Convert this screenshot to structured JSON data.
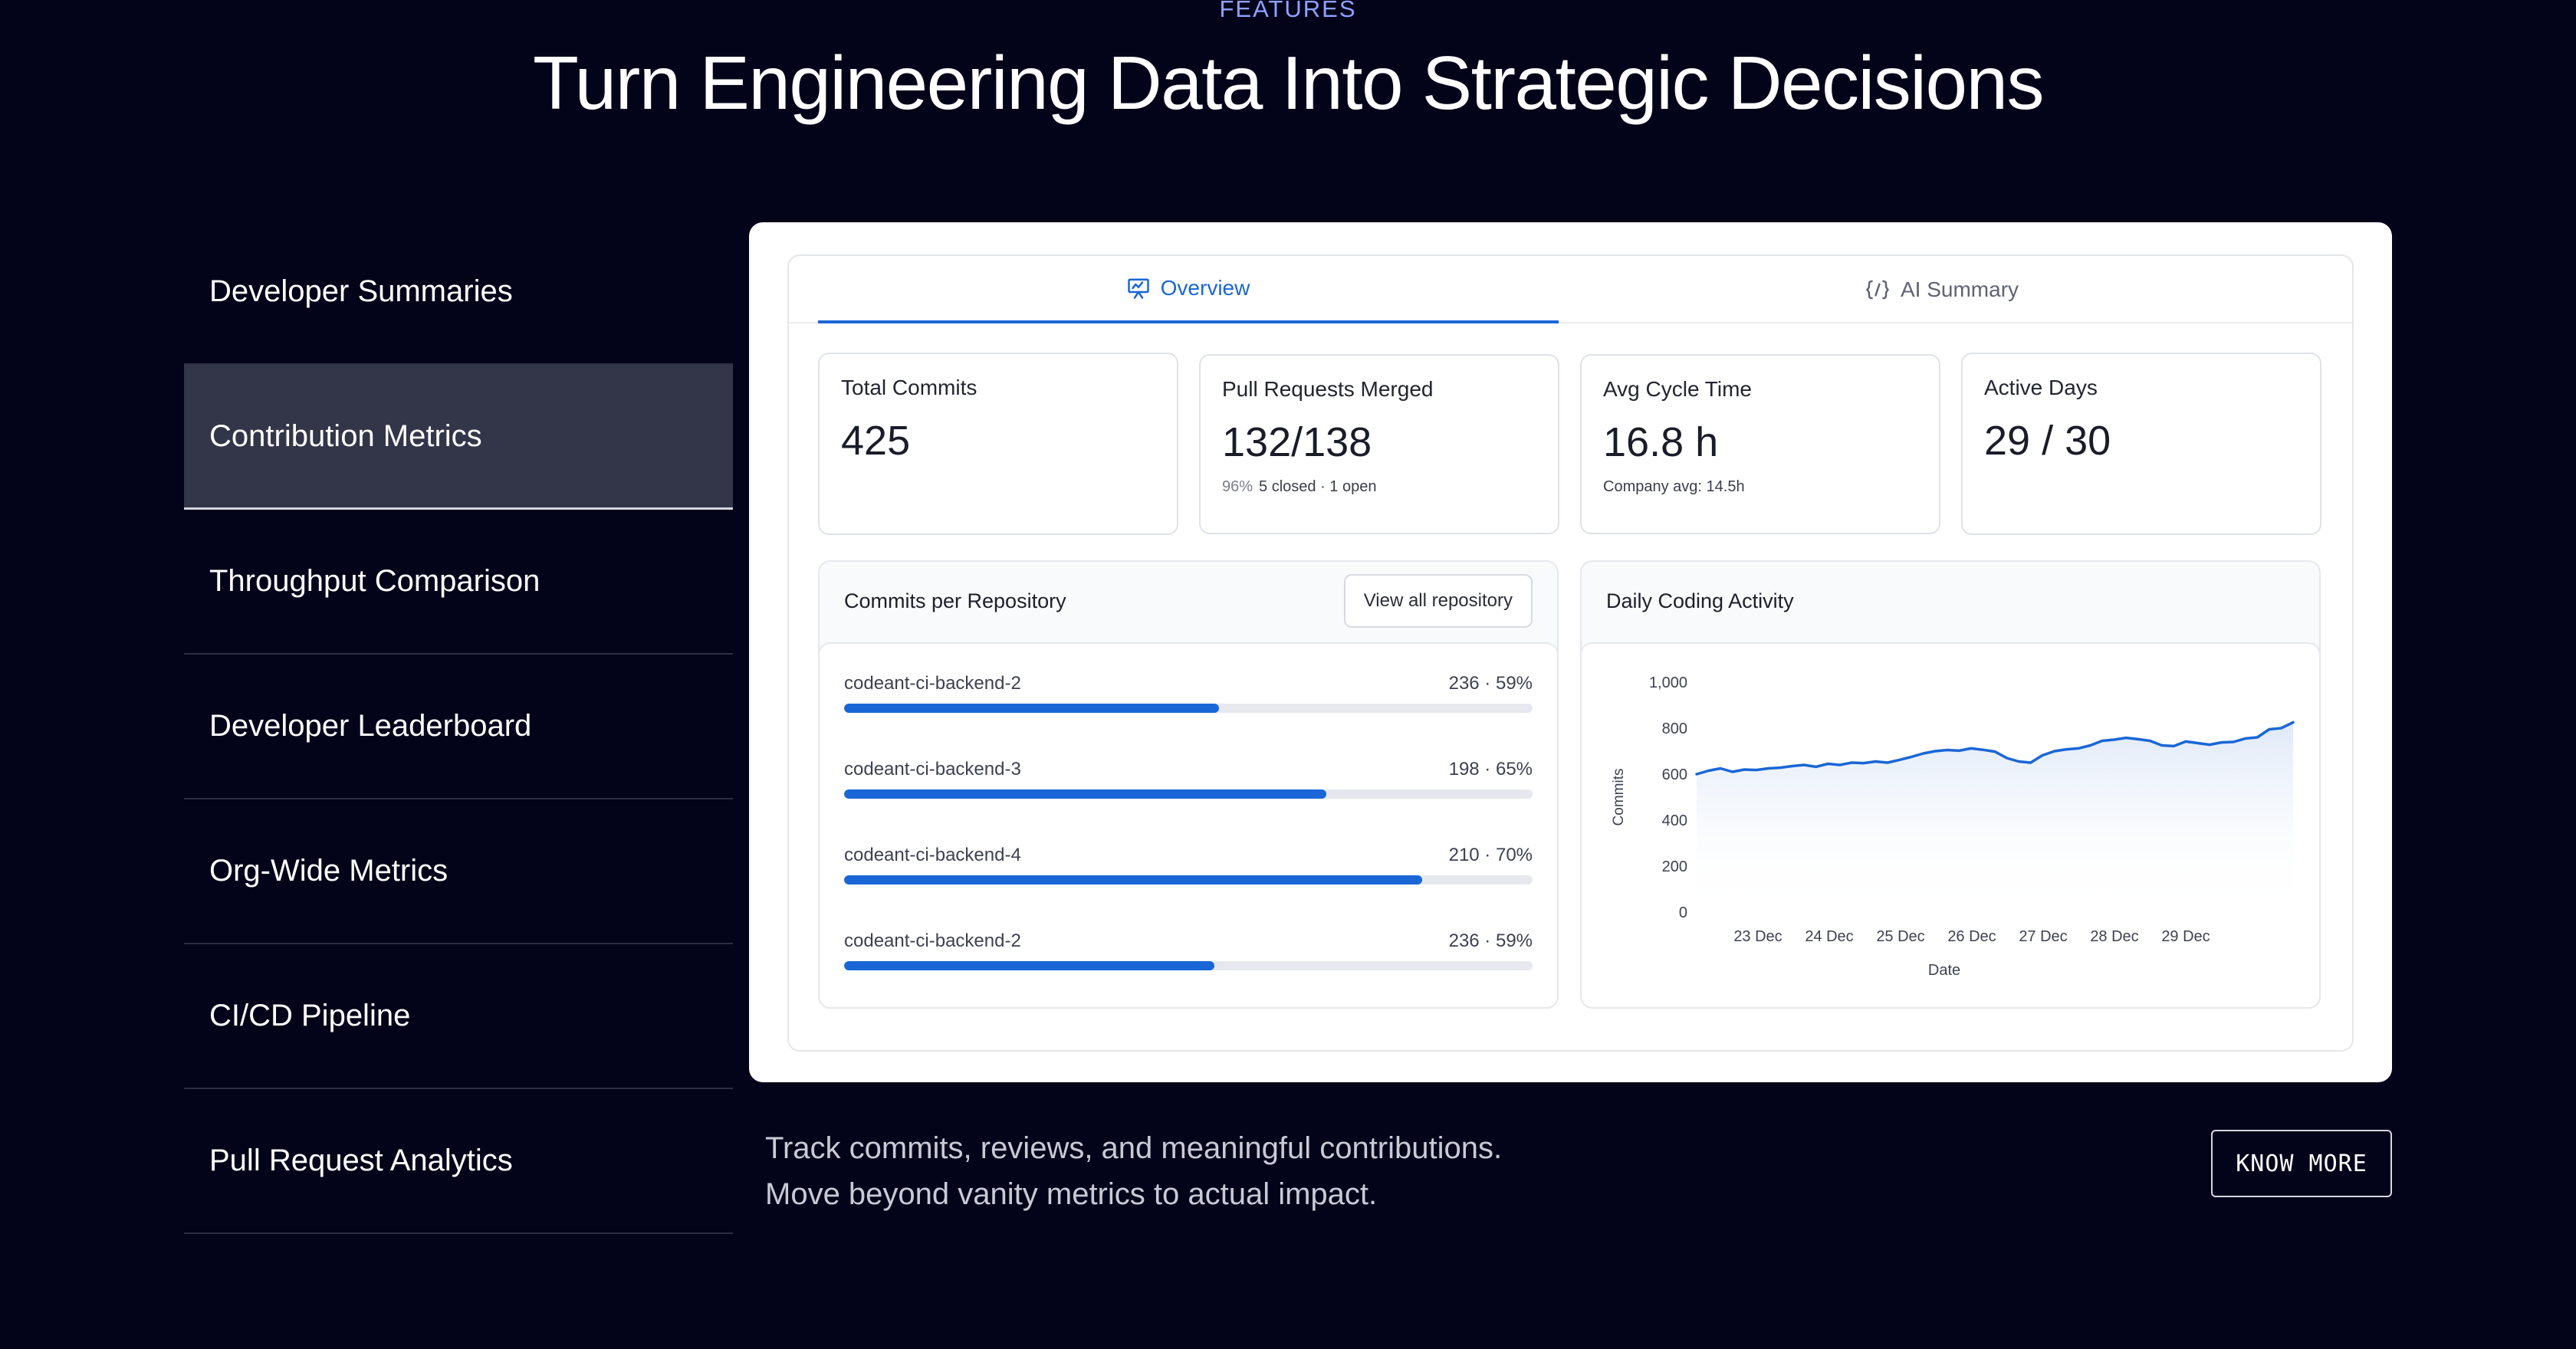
{
  "header": {
    "eyebrow": "FEATURES",
    "title": "Turn Engineering Data Into Strategic Decisions"
  },
  "features": [
    {
      "label": "Developer Summaries",
      "active": false
    },
    {
      "label": "Contribution Metrics",
      "active": true
    },
    {
      "label": "Throughput Comparison",
      "active": false
    },
    {
      "label": "Developer Leaderboard",
      "active": false
    },
    {
      "label": "Org-Wide Metrics",
      "active": false
    },
    {
      "label": "CI/CD Pipeline",
      "active": false
    },
    {
      "label": "Pull Request Analytics",
      "active": false
    }
  ],
  "dashboard": {
    "tabs": [
      {
        "label": "Overview",
        "icon": "presentation-icon",
        "active": true
      },
      {
        "label": "AI Summary",
        "icon": "code-brackets-icon",
        "active": false
      }
    ],
    "stats": [
      {
        "label": "Total Commits",
        "value": "425",
        "sub_muted": "",
        "sub": ""
      },
      {
        "label": "Pull Requests Merged",
        "value": "132/138",
        "sub_muted": "96%",
        "sub": "5 closed · 1 open"
      },
      {
        "label": "Avg Cycle Time",
        "value": "16.8 h",
        "sub_muted": "",
        "sub": "Company avg: 14.5h"
      },
      {
        "label": "Active Days",
        "value": "29 / 30",
        "sub_muted": "",
        "sub": ""
      }
    ],
    "repos_panel": {
      "title": "Commits per Repository",
      "view_all_label": "View all repository",
      "repos": [
        {
          "name": "codeant-ci-backend-2",
          "value_label": "236 · 59%",
          "fill": 0.545
        },
        {
          "name": "codeant-ci-backend-3",
          "value_label": "198 · 65%",
          "fill": 0.7
        },
        {
          "name": "codeant-ci-backend-4",
          "value_label": "210 · 70%",
          "fill": 0.84
        },
        {
          "name": "codeant-ci-backend-2",
          "value_label": "236 · 59%",
          "fill": 0.538
        }
      ]
    },
    "activity_panel": {
      "title": "Daily Coding Activity"
    }
  },
  "chart_data": {
    "type": "area",
    "title": "Daily Coding Activity",
    "xlabel": "Date",
    "ylabel": "Commits",
    "ylim": [
      0,
      1000
    ],
    "yticks": [
      "1,000",
      "800",
      "600",
      "400",
      "200",
      "0"
    ],
    "ytick_values": [
      1000,
      800,
      600,
      400,
      200,
      0
    ],
    "xticks": [
      "23 Dec",
      "24 Dec",
      "25 Dec",
      "26 Dec",
      "27 Dec",
      "28 Dec",
      "29 Dec"
    ],
    "series": [
      {
        "values": [
          600,
          615,
          625,
          610,
          620,
          618,
          625,
          628,
          635,
          640,
          632,
          645,
          640,
          650,
          648,
          655,
          650,
          662,
          675,
          690,
          700,
          705,
          702,
          712,
          706,
          698,
          670,
          655,
          650,
          682,
          700,
          708,
          712,
          725,
          745,
          750,
          758,
          752,
          745,
          725,
          722,
          742,
          735,
          728,
          738,
          740,
          755,
          760,
          795,
          800,
          825
        ]
      }
    ],
    "grid": false,
    "color": "#1a66d6"
  },
  "description": {
    "line1": "Track commits, reviews, and meaningful contributions.",
    "line2": "Move beyond vanity metrics to actual impact."
  },
  "cta": {
    "label": "KNOW MORE"
  }
}
